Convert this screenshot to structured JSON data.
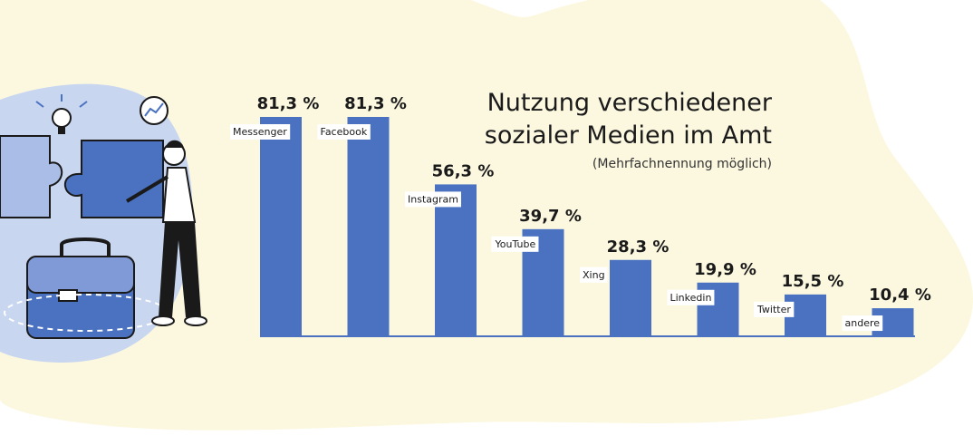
{
  "colors": {
    "bar": "#4a72c0",
    "background_blob": "#fcf8e0",
    "text": "#1a1a1a"
  },
  "illustration": {
    "icons": [
      "lightbulb-icon",
      "chart-circle-icon",
      "puzzle-icon",
      "briefcase-icon",
      "person-icon"
    ]
  },
  "chart_data": {
    "type": "bar",
    "title_line1": "Nutzung verschiedener",
    "title_line2": "sozialer Medien im Amt",
    "subtitle": "(Mehrfachnennung möglich)",
    "categories": [
      "Messenger",
      "Facebook",
      "Instagram",
      "YouTube",
      "Xing",
      "Linkedin",
      "Twitter",
      "andere"
    ],
    "values": [
      81.3,
      81.3,
      56.3,
      39.7,
      28.3,
      19.9,
      15.5,
      10.4
    ],
    "value_labels": [
      "81,3 %",
      "81,3 %",
      "56,3 %",
      "39,7 %",
      "28,3 %",
      "19,9 %",
      "15,5 %",
      "10,4 %"
    ],
    "ylim": [
      0,
      100
    ],
    "grid": false,
    "legend": "none"
  }
}
